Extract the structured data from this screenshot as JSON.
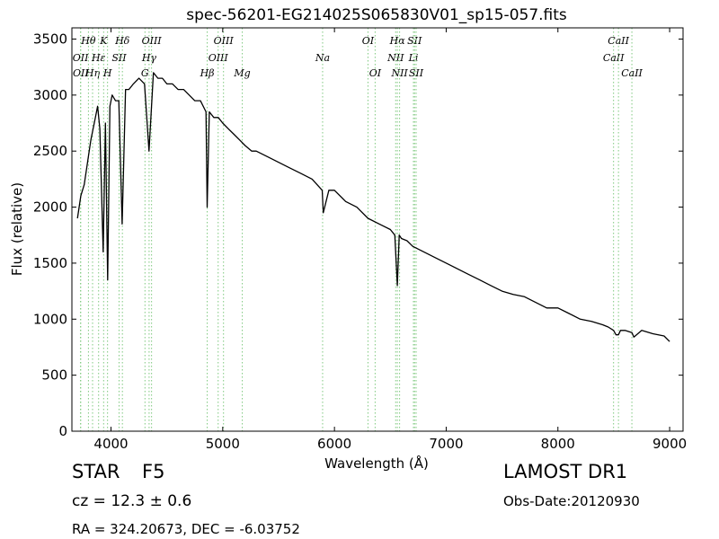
{
  "chart_data": {
    "type": "line",
    "title": "spec-56201-EG214025S065830V01_sp15-057.fits",
    "xlabel": "Wavelength (Å)",
    "ylabel": "Flux (relative)",
    "xlim": [
      3650,
      9120
    ],
    "ylim": [
      0,
      3600
    ],
    "xticks": [
      4000,
      5000,
      6000,
      7000,
      8000,
      9000
    ],
    "yticks": [
      0,
      500,
      1000,
      1500,
      2000,
      2500,
      3000,
      3500
    ],
    "grid": false,
    "series": [
      {
        "color": "#000000",
        "x": [
          3700,
          3730,
          3760,
          3790,
          3820,
          3850,
          3880,
          3900,
          3930,
          3950,
          3970,
          3990,
          4010,
          4040,
          4070,
          4100,
          4130,
          4160,
          4200,
          4250,
          4300,
          4340,
          4380,
          4420,
          4460,
          4500,
          4550,
          4600,
          4650,
          4700,
          4750,
          4800,
          4850,
          4861,
          4880,
          4920,
          4960,
          5000,
          5050,
          5100,
          5150,
          5200,
          5260,
          5300,
          5400,
          5500,
          5600,
          5700,
          5800,
          5890,
          5900,
          5950,
          6000,
          6100,
          6200,
          6300,
          6400,
          6500,
          6540,
          6563,
          6580,
          6600,
          6650,
          6700,
          6800,
          6900,
          7000,
          7100,
          7200,
          7300,
          7400,
          7500,
          7600,
          7700,
          7800,
          7900,
          8000,
          8100,
          8200,
          8300,
          8400,
          8450,
          8498,
          8520,
          8542,
          8560,
          8600,
          8662,
          8680,
          8750,
          8850,
          8950,
          9000
        ],
        "y": [
          1900,
          2100,
          2200,
          2400,
          2600,
          2750,
          2900,
          2700,
          1600,
          2750,
          1350,
          2900,
          3000,
          2950,
          2950,
          1850,
          3050,
          3050,
          3100,
          3150,
          3100,
          2500,
          3200,
          3150,
          3150,
          3100,
          3100,
          3050,
          3050,
          3000,
          2950,
          2950,
          2850,
          2000,
          2850,
          2800,
          2800,
          2750,
          2700,
          2650,
          2600,
          2550,
          2500,
          2500,
          2450,
          2400,
          2350,
          2300,
          2250,
          2150,
          1950,
          2150,
          2150,
          2050,
          2000,
          1900,
          1850,
          1800,
          1750,
          1300,
          1750,
          1720,
          1700,
          1650,
          1600,
          1550,
          1500,
          1450,
          1400,
          1350,
          1300,
          1250,
          1220,
          1200,
          1150,
          1100,
          1100,
          1050,
          1000,
          980,
          950,
          930,
          900,
          860,
          860,
          900,
          900,
          880,
          840,
          900,
          870,
          850,
          800
        ]
      }
    ],
    "lines": [
      {
        "label": "OII",
        "x": 3727,
        "row": 2
      },
      {
        "label": "OII",
        "x": 3729,
        "row": 3
      },
      {
        "label": "Hθ",
        "x": 3798,
        "row": 1
      },
      {
        "label": "Hη",
        "x": 3835,
        "row": 3
      },
      {
        "label": "Hε",
        "x": 3889,
        "row": 2
      },
      {
        "label": "K",
        "x": 3934,
        "row": 1
      },
      {
        "label": "H",
        "x": 3969,
        "row": 3
      },
      {
        "label": "SII",
        "x": 4072,
        "row": 2
      },
      {
        "label": "Hδ",
        "x": 4102,
        "row": 1
      },
      {
        "label": "G",
        "x": 4304,
        "row": 3
      },
      {
        "label": "Hγ",
        "x": 4341,
        "row": 2
      },
      {
        "label": "OIII",
        "x": 4363,
        "row": 1
      },
      {
        "label": "Hβ",
        "x": 4861,
        "row": 3
      },
      {
        "label": "OIII",
        "x": 4959,
        "row": 2
      },
      {
        "label": "OIII",
        "x": 5007,
        "row": 1
      },
      {
        "label": "Mg",
        "x": 5175,
        "row": 3
      },
      {
        "label": "Na",
        "x": 5894,
        "row": 2
      },
      {
        "label": "OI",
        "x": 6300,
        "row": 1
      },
      {
        "label": "OI",
        "x": 6364,
        "row": 3
      },
      {
        "label": "NII",
        "x": 6548,
        "row": 2
      },
      {
        "label": "Hα",
        "x": 6563,
        "row": 1
      },
      {
        "label": "NII",
        "x": 6583,
        "row": 3
      },
      {
        "label": "Li",
        "x": 6707,
        "row": 2
      },
      {
        "label": "SII",
        "x": 6717,
        "row": 1
      },
      {
        "label": "SII",
        "x": 6731,
        "row": 3
      },
      {
        "label": "CaII",
        "x": 8498,
        "row": 2
      },
      {
        "label": "CaII",
        "x": 8542,
        "row": 1
      },
      {
        "label": "CaII",
        "x": 8662,
        "row": 3
      }
    ],
    "line_color": "#7fc97f"
  },
  "info": {
    "class": "STAR",
    "subclass": "F5",
    "survey": "LAMOST DR1",
    "redshift": "cz = 12.3  ± 0.6",
    "obs_date": "Obs-Date:20120930",
    "coords": "RA = 324.20673, DEC = -6.03752"
  }
}
